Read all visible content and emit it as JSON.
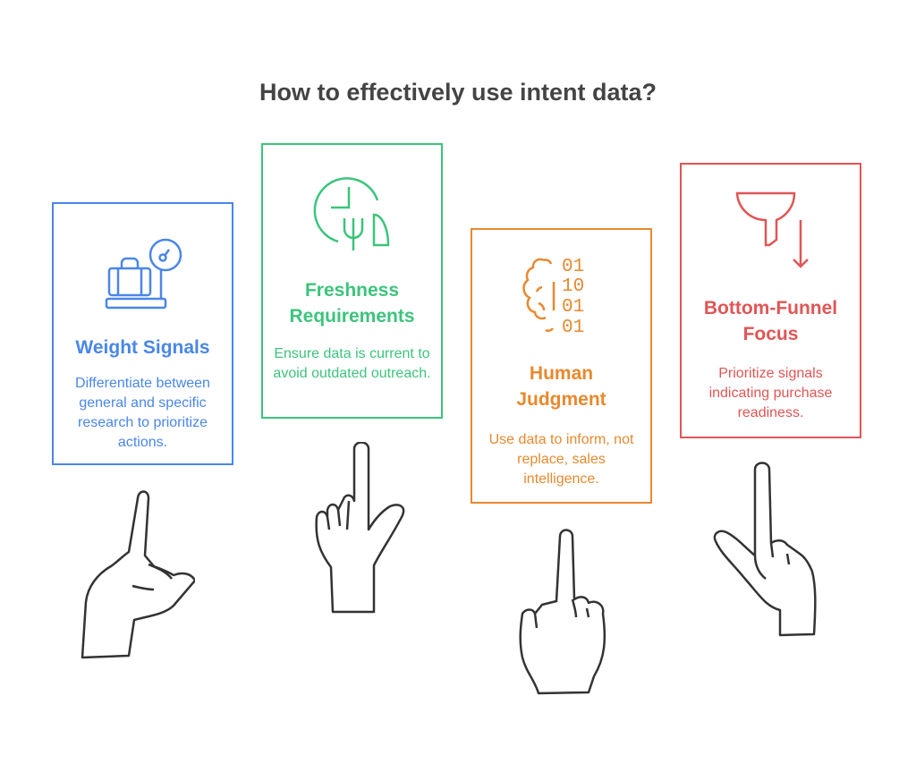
{
  "title": "How to effectively use intent data?",
  "colors": {
    "blue": "#4a86e8",
    "green": "#3cc47c",
    "orange": "#e8892e",
    "red": "#e05555",
    "text": "#444444",
    "hand": "#333333"
  },
  "cards": [
    {
      "title": "Weight Signals",
      "description": "Differentiate between general and specific research to prioritize actions.",
      "icon": "luggage-scale-icon"
    },
    {
      "title": "Freshness Requirements",
      "description": "Ensure data is current to avoid outdated outreach.",
      "icon": "clock-fork-icon"
    },
    {
      "title": "Human Judgment",
      "description": "Use data to inform, not replace, sales intelligence.",
      "icon": "brain-binary-icon",
      "binary": [
        "01",
        "10",
        "01",
        "01"
      ]
    },
    {
      "title": "Bottom-Funnel Focus",
      "description": "Prioritize signals indicating purchase readiness.",
      "icon": "funnel-down-icon"
    }
  ]
}
